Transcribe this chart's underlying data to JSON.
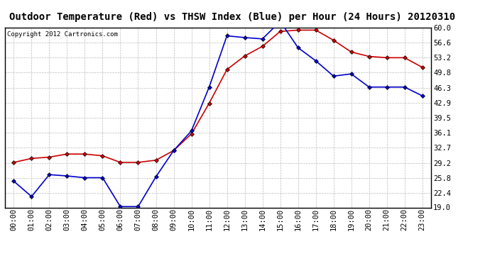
{
  "title": "Outdoor Temperature (Red) vs THSW Index (Blue) per Hour (24 Hours) 20120310",
  "copyright": "Copyright 2012 Cartronics.com",
  "x_labels": [
    "00:00",
    "01:00",
    "02:00",
    "03:00",
    "04:00",
    "05:00",
    "06:00",
    "07:00",
    "08:00",
    "09:00",
    "10:00",
    "11:00",
    "12:00",
    "13:00",
    "14:00",
    "15:00",
    "16:00",
    "17:00",
    "18:00",
    "19:00",
    "20:00",
    "21:00",
    "22:00",
    "23:00"
  ],
  "red_data": [
    29.3,
    30.2,
    30.5,
    31.2,
    31.2,
    30.8,
    29.3,
    29.3,
    29.8,
    32.0,
    35.8,
    42.8,
    50.5,
    53.6,
    55.8,
    59.2,
    59.5,
    59.5,
    57.2,
    54.5,
    53.5,
    53.2,
    53.2,
    51.0
  ],
  "blue_data": [
    25.0,
    21.5,
    26.5,
    26.2,
    25.8,
    25.8,
    19.2,
    19.2,
    26.0,
    32.0,
    36.5,
    46.5,
    58.2,
    57.8,
    57.5,
    61.5,
    55.5,
    52.5,
    49.0,
    49.5,
    46.5,
    46.5,
    46.5,
    44.5
  ],
  "y_ticks": [
    19.0,
    22.4,
    25.8,
    29.2,
    32.7,
    36.1,
    39.5,
    42.9,
    46.3,
    49.8,
    53.2,
    56.6,
    60.0
  ],
  "y_min": 19.0,
  "y_max": 60.0,
  "red_color": "#cc0000",
  "blue_color": "#0000cc",
  "marker": "D",
  "marker_size": 3,
  "title_fontsize": 10,
  "copyright_fontsize": 6.5,
  "axis_fontsize": 7.5,
  "bg_color": "#ffffff",
  "grid_color": "#bbbbbb",
  "title_bg": "#ffffff",
  "title_border": "#000000"
}
